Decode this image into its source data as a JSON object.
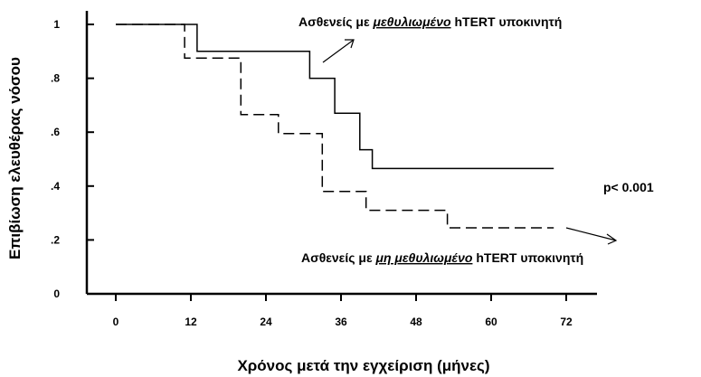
{
  "chart_data": {
    "type": "line",
    "subtype": "kaplan-meier",
    "title": "",
    "xlabel": "Χρόνος μετά την εγχείριση (μήνες)",
    "ylabel": "Επιβίωση ελευθέρας νόσου",
    "xlim": [
      0,
      72
    ],
    "ylim": [
      0,
      1
    ],
    "x_ticks": [
      0,
      12,
      24,
      36,
      48,
      60,
      72
    ],
    "x_tick_labels": [
      "0",
      "12",
      "24",
      "36",
      "48",
      "60",
      "72"
    ],
    "y_ticks": [
      0,
      0.2,
      0.4,
      0.6,
      0.8,
      1
    ],
    "y_tick_labels": [
      "0",
      ".2",
      ".4",
      ".6",
      ".8",
      "1"
    ],
    "grid": false,
    "series": [
      {
        "line_style": "solid",
        "color": "#000000",
        "steps": [
          [
            0,
            1.0
          ],
          [
            13,
            1.0
          ],
          [
            13,
            0.9
          ],
          [
            31,
            0.9
          ],
          [
            31,
            0.8
          ],
          [
            35,
            0.8
          ],
          [
            35,
            0.67
          ],
          [
            39,
            0.67
          ],
          [
            39,
            0.535
          ],
          [
            41,
            0.535
          ],
          [
            41,
            0.465
          ],
          [
            70,
            0.465
          ]
        ]
      },
      {
        "line_style": "dashed",
        "color": "#000000",
        "steps": [
          [
            0,
            1.0
          ],
          [
            11,
            1.0
          ],
          [
            11,
            0.875
          ],
          [
            20,
            0.875
          ],
          [
            20,
            0.665
          ],
          [
            26,
            0.665
          ],
          [
            26,
            0.595
          ],
          [
            33,
            0.595
          ],
          [
            33,
            0.38
          ],
          [
            40,
            0.38
          ],
          [
            40,
            0.31
          ],
          [
            53,
            0.31
          ],
          [
            53,
            0.245
          ],
          [
            70,
            0.245
          ]
        ]
      }
    ],
    "annotations": [
      {
        "id": "top",
        "text_before": "Ασθενείς με ",
        "text_emphasis": "μεθυλιωμένο",
        "text_after": " hTERT υποκινητή"
      },
      {
        "id": "bottom",
        "text_before": "Ασθενείς με ",
        "text_emphasis": "μη μεθυλιωμένο",
        "text_after": " hTERT υποκινητή"
      },
      {
        "id": "pvalue",
        "text": "p< 0.001"
      }
    ]
  }
}
